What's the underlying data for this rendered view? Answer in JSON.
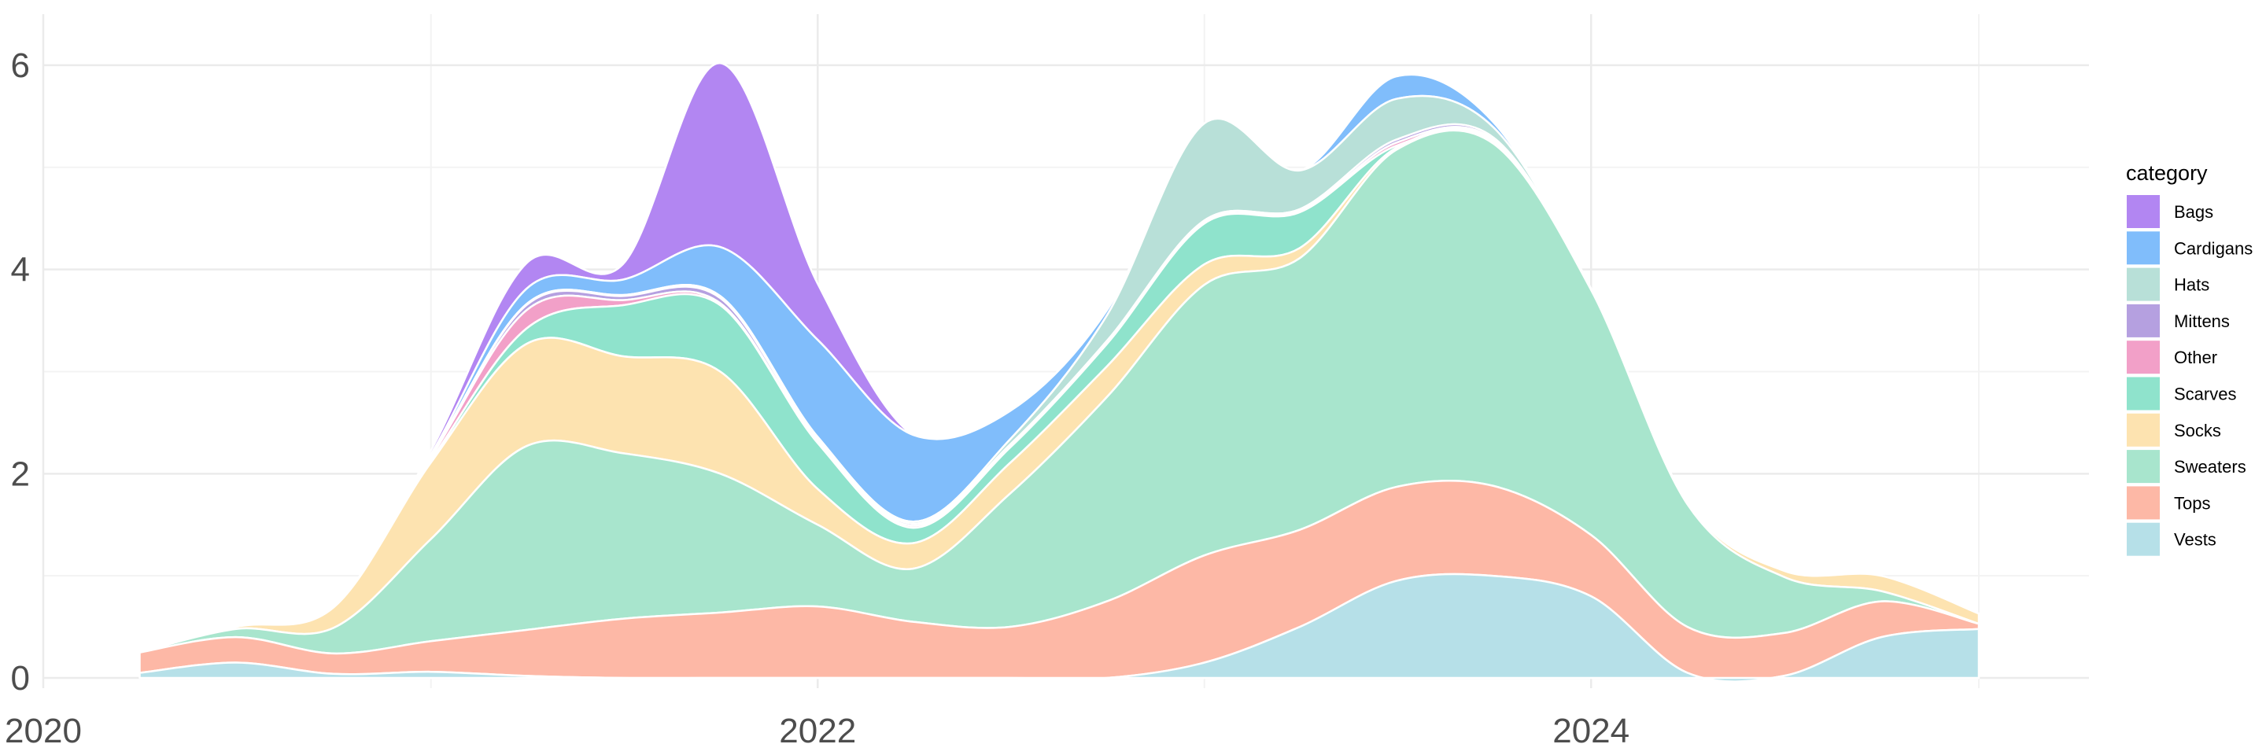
{
  "chart_data": {
    "type": "area",
    "stacked": true,
    "smoothed": true,
    "title": "",
    "xlabel": "",
    "ylabel": "",
    "x_ticks": [
      "2020",
      "2022",
      "2024"
    ],
    "y_ticks": [
      "0",
      "2",
      "4",
      "6"
    ],
    "xlim": [
      "2020-01-01",
      "2025-04-15"
    ],
    "ylim": [
      -0.1,
      6.5
    ],
    "grid": true,
    "legend": {
      "title": "category",
      "position": "right"
    },
    "x": [
      "2020-04-01",
      "2020-07-01",
      "2020-10-01",
      "2021-01-01",
      "2021-04-01",
      "2021-07-01",
      "2021-10-01",
      "2022-01-01",
      "2022-04-01",
      "2022-07-01",
      "2022-10-01",
      "2023-01-01",
      "2023-04-01",
      "2023-07-01",
      "2023-10-01",
      "2024-01-01",
      "2024-04-01",
      "2024-07-01",
      "2024-10-01",
      "2025-01-01"
    ],
    "series": [
      {
        "name": "Vests",
        "color": "#b6e0e8",
        "values": [
          0.05,
          0.15,
          0.04,
          0.06,
          0.02,
          0.0,
          0.0,
          0.0,
          0.0,
          0.0,
          0.0,
          0.15,
          0.5,
          0.95,
          1.0,
          0.8,
          0.05,
          0.02,
          0.4,
          0.48
        ]
      },
      {
        "name": "Tops",
        "color": "#fdb8a6",
        "values": [
          0.2,
          0.25,
          0.2,
          0.3,
          0.45,
          0.58,
          0.64,
          0.7,
          0.55,
          0.5,
          0.75,
          1.05,
          0.95,
          0.92,
          0.88,
          0.6,
          0.45,
          0.42,
          0.35,
          0.05
        ]
      },
      {
        "name": "Sweaters",
        "color": "#a8e5cd",
        "values": [
          0.0,
          0.08,
          0.25,
          1.0,
          1.8,
          1.62,
          1.36,
          0.8,
          0.52,
          1.3,
          2.0,
          2.65,
          2.66,
          3.3,
          3.35,
          2.4,
          1.2,
          0.55,
          0.1,
          0.0
        ]
      },
      {
        "name": "Socks",
        "color": "#fde3b0",
        "values": [
          0.0,
          0.02,
          0.2,
          0.75,
          1.0,
          0.95,
          1.0,
          0.35,
          0.25,
          0.3,
          0.3,
          0.2,
          0.1,
          0.02,
          0.02,
          0.01,
          0.02,
          0.06,
          0.15,
          0.1
        ]
      },
      {
        "name": "Scarves",
        "color": "#8fe3cc",
        "values": [
          0.0,
          0.0,
          0.0,
          0.02,
          0.15,
          0.5,
          0.65,
          0.45,
          0.15,
          0.15,
          0.22,
          0.4,
          0.35,
          0.02,
          0.01,
          0.0,
          0.0,
          0.0,
          0.0,
          0.0
        ]
      },
      {
        "name": "Other",
        "color": "#f2a0c8",
        "values": [
          0.0,
          0.0,
          0.0,
          0.03,
          0.18,
          0.05,
          0.02,
          0.01,
          0.02,
          0.01,
          0.01,
          0.01,
          0.01,
          0.03,
          0.01,
          0.0,
          0.0,
          0.0,
          0.0,
          0.0
        ]
      },
      {
        "name": "Mittens",
        "color": "#b5a0e0",
        "values": [
          0.0,
          0.0,
          0.0,
          0.01,
          0.05,
          0.04,
          0.05,
          0.03,
          0.02,
          0.02,
          0.02,
          0.02,
          0.02,
          0.03,
          0.02,
          0.0,
          0.0,
          0.0,
          0.0,
          0.0
        ]
      },
      {
        "name": "Hats",
        "color": "#b8e0d8",
        "values": [
          0.0,
          0.0,
          0.0,
          0.0,
          0.01,
          0.01,
          0.02,
          0.02,
          0.02,
          0.05,
          0.25,
          0.95,
          0.38,
          0.4,
          0.1,
          0.0,
          0.0,
          0.0,
          0.0,
          0.0
        ]
      },
      {
        "name": "Cardigans",
        "color": "#80bdfb",
        "values": [
          0.0,
          0.0,
          0.0,
          0.02,
          0.15,
          0.15,
          0.48,
          0.95,
          0.85,
          0.28,
          0.05,
          0.0,
          0.0,
          0.22,
          0.05,
          0.0,
          0.0,
          0.0,
          0.0,
          0.0
        ]
      },
      {
        "name": "Bags",
        "color": "#b286f2",
        "values": [
          0.0,
          0.0,
          0.0,
          0.04,
          0.25,
          0.15,
          1.8,
          0.55,
          0.0,
          0.0,
          0.0,
          0.0,
          0.0,
          0.0,
          0.0,
          0.0,
          0.0,
          0.0,
          0.0,
          0.0
        ]
      }
    ]
  }
}
